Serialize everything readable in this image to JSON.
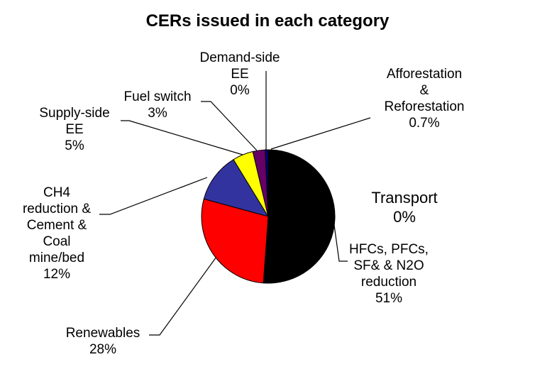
{
  "chart_data": {
    "type": "pie",
    "title": "CERs issued in each category",
    "categories": [
      "HFCs, PFCs,\nSF& & N2O\nreduction",
      "Renewables",
      "CH4\nreduction &\nCement &\nCoal\nmine/bed",
      "Supply-side\nEE",
      "Fuel switch",
      "Demand-side\nEE",
      "Afforestation\n&\nReforestation",
      "Transport"
    ],
    "values": [
      51,
      28,
      12,
      5,
      3,
      0,
      0.7,
      0
    ],
    "value_labels": [
      "51%",
      "28%",
      "12%",
      "5%",
      "3%",
      "0%",
      "0.7%",
      "0%"
    ],
    "colors": [
      "#000000",
      "#ff0000",
      "#3333a0",
      "#ffff00",
      "#660066",
      "#9999ff",
      "#000080",
      "#cccccc"
    ]
  }
}
